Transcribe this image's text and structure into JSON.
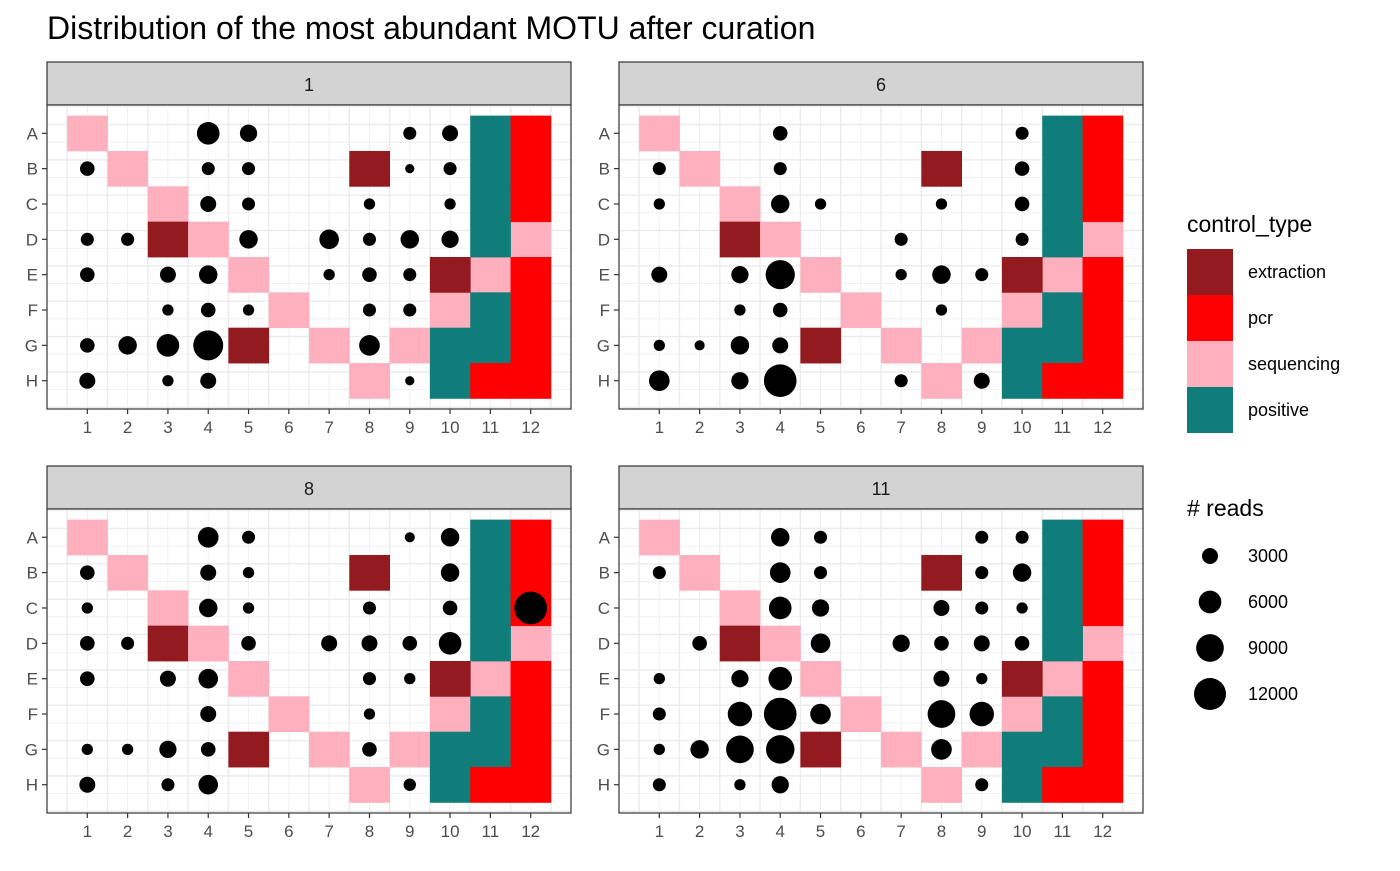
{
  "colors": {
    "extraction": "#931a1f",
    "pcr": "#ff0000",
    "sequencing": "#ffb0bf",
    "positive": "#117d7a",
    "point": "#000000",
    "strip": "#d3d3d3",
    "grid": "#ebebeb"
  },
  "chart_data": {
    "type": "scatter",
    "title": "Distribution of the most abundant MOTU after curation",
    "xlabel": "",
    "ylabel": "",
    "x_ticks": [
      "1",
      "2",
      "3",
      "4",
      "5",
      "6",
      "7",
      "8",
      "9",
      "10",
      "11",
      "12"
    ],
    "y_ticks": [
      "A",
      "B",
      "C",
      "D",
      "E",
      "F",
      "G",
      "H"
    ],
    "xlim": [
      0.5,
      12.5
    ],
    "grid": true,
    "legend_position": "right",
    "legend_fill": {
      "title": "control_type",
      "entries": [
        {
          "key": "extraction",
          "label": "extraction"
        },
        {
          "key": "pcr",
          "label": "pcr"
        },
        {
          "key": "sequencing",
          "label": "sequencing"
        },
        {
          "key": "positive",
          "label": "positive"
        }
      ]
    },
    "legend_size": {
      "title": "# reads",
      "breaks": [
        3000,
        6000,
        9000,
        12000
      ],
      "labels": [
        "3000",
        "6000",
        "9000",
        "12000"
      ]
    },
    "controls": [
      {
        "well": "A1",
        "type": "sequencing"
      },
      {
        "well": "B2",
        "type": "sequencing"
      },
      {
        "well": "C3",
        "type": "sequencing"
      },
      {
        "well": "D3",
        "type": "extraction"
      },
      {
        "well": "D4",
        "type": "sequencing"
      },
      {
        "well": "E5",
        "type": "sequencing"
      },
      {
        "well": "F6",
        "type": "sequencing"
      },
      {
        "well": "G7",
        "type": "sequencing"
      },
      {
        "well": "H8",
        "type": "sequencing"
      },
      {
        "well": "G9",
        "type": "sequencing"
      },
      {
        "well": "F10",
        "type": "sequencing"
      },
      {
        "well": "E11",
        "type": "sequencing"
      },
      {
        "well": "D12",
        "type": "sequencing"
      },
      {
        "well": "B8",
        "type": "extraction"
      },
      {
        "well": "E10",
        "type": "extraction"
      },
      {
        "well": "A11",
        "type": "positive"
      },
      {
        "well": "B11",
        "type": "positive"
      },
      {
        "well": "C11",
        "type": "positive"
      },
      {
        "well": "D11",
        "type": "positive"
      },
      {
        "well": "F11",
        "type": "positive"
      },
      {
        "well": "G11",
        "type": "positive"
      },
      {
        "well": "G10",
        "type": "positive"
      },
      {
        "well": "H10",
        "type": "positive"
      },
      {
        "well": "A12",
        "type": "pcr"
      },
      {
        "well": "B12",
        "type": "pcr"
      },
      {
        "well": "C12",
        "type": "pcr"
      },
      {
        "well": "E12",
        "type": "pcr"
      },
      {
        "well": "F12",
        "type": "pcr"
      },
      {
        "well": "G12",
        "type": "pcr"
      },
      {
        "well": "H12",
        "type": "pcr"
      },
      {
        "well": "H11",
        "type": "pcr"
      }
    ],
    "panels": [
      {
        "label": "1",
        "variable_control": {
          "well": "G5",
          "type": "extraction"
        },
        "points": [
          {
            "well": "A4",
            "reads": 6000
          },
          {
            "well": "A5",
            "reads": 3500
          },
          {
            "well": "A9",
            "reads": 2000
          },
          {
            "well": "A10",
            "reads": 3000
          },
          {
            "well": "B1",
            "reads": 2500
          },
          {
            "well": "B4",
            "reads": 2000
          },
          {
            "well": "B5",
            "reads": 2000
          },
          {
            "well": "B9",
            "reads": 1000
          },
          {
            "well": "B10",
            "reads": 2000
          },
          {
            "well": "C4",
            "reads": 3000
          },
          {
            "well": "C5",
            "reads": 2000
          },
          {
            "well": "C8",
            "reads": 1500
          },
          {
            "well": "C10",
            "reads": 1500
          },
          {
            "well": "D1",
            "reads": 2000
          },
          {
            "well": "D2",
            "reads": 2000
          },
          {
            "well": "D5",
            "reads": 4000
          },
          {
            "well": "D7",
            "reads": 4500
          },
          {
            "well": "D8",
            "reads": 2000
          },
          {
            "well": "D9",
            "reads": 4000
          },
          {
            "well": "D10",
            "reads": 3500
          },
          {
            "well": "E1",
            "reads": 2500
          },
          {
            "well": "E3",
            "reads": 3000
          },
          {
            "well": "E4",
            "reads": 4000
          },
          {
            "well": "E7",
            "reads": 1500
          },
          {
            "well": "E8",
            "reads": 2500
          },
          {
            "well": "E9",
            "reads": 2000
          },
          {
            "well": "F3",
            "reads": 1500
          },
          {
            "well": "F4",
            "reads": 2500
          },
          {
            "well": "F5",
            "reads": 1500
          },
          {
            "well": "F8",
            "reads": 2000
          },
          {
            "well": "F9",
            "reads": 2000
          },
          {
            "well": "G1",
            "reads": 2500
          },
          {
            "well": "G2",
            "reads": 4000
          },
          {
            "well": "G3",
            "reads": 6000
          },
          {
            "well": "G4",
            "reads": 10500
          },
          {
            "well": "G8",
            "reads": 5000
          },
          {
            "well": "H1",
            "reads": 3000
          },
          {
            "well": "H3",
            "reads": 1500
          },
          {
            "well": "H4",
            "reads": 3000
          },
          {
            "well": "H9",
            "reads": 1000
          }
        ]
      },
      {
        "label": "6",
        "variable_control": {
          "well": "G5",
          "type": "extraction"
        },
        "points": [
          {
            "well": "A4",
            "reads": 2500
          },
          {
            "well": "A10",
            "reads": 2000
          },
          {
            "well": "B1",
            "reads": 2000
          },
          {
            "well": "B4",
            "reads": 2000
          },
          {
            "well": "B10",
            "reads": 2500
          },
          {
            "well": "C1",
            "reads": 1500
          },
          {
            "well": "C4",
            "reads": 4000
          },
          {
            "well": "C5",
            "reads": 1500
          },
          {
            "well": "C8",
            "reads": 1500
          },
          {
            "well": "C10",
            "reads": 2500
          },
          {
            "well": "D7",
            "reads": 2000
          },
          {
            "well": "D10",
            "reads": 2000
          },
          {
            "well": "E1",
            "reads": 3000
          },
          {
            "well": "E3",
            "reads": 3500
          },
          {
            "well": "E4",
            "reads": 10000
          },
          {
            "well": "E7",
            "reads": 1500
          },
          {
            "well": "E8",
            "reads": 4000
          },
          {
            "well": "E9",
            "reads": 2000
          },
          {
            "well": "F3",
            "reads": 1500
          },
          {
            "well": "F4",
            "reads": 2500
          },
          {
            "well": "F8",
            "reads": 1500
          },
          {
            "well": "G1",
            "reads": 1500
          },
          {
            "well": "G2",
            "reads": 1200
          },
          {
            "well": "G3",
            "reads": 4000
          },
          {
            "well": "G4",
            "reads": 3000
          },
          {
            "well": "H1",
            "reads": 5000
          },
          {
            "well": "H3",
            "reads": 3500
          },
          {
            "well": "H4",
            "reads": 12500
          },
          {
            "well": "H7",
            "reads": 2000
          },
          {
            "well": "H9",
            "reads": 3000
          }
        ]
      },
      {
        "label": "8",
        "variable_control": {
          "well": "G5",
          "type": "extraction"
        },
        "points": [
          {
            "well": "A4",
            "reads": 5000
          },
          {
            "well": "A5",
            "reads": 2000
          },
          {
            "well": "A9",
            "reads": 1200
          },
          {
            "well": "A10",
            "reads": 4000
          },
          {
            "well": "B1",
            "reads": 2500
          },
          {
            "well": "B4",
            "reads": 3000
          },
          {
            "well": "B5",
            "reads": 1500
          },
          {
            "well": "B10",
            "reads": 4000
          },
          {
            "well": "C1",
            "reads": 1500
          },
          {
            "well": "C4",
            "reads": 4000
          },
          {
            "well": "C5",
            "reads": 1500
          },
          {
            "well": "C8",
            "reads": 2000
          },
          {
            "well": "C10",
            "reads": 2500
          },
          {
            "well": "C12",
            "reads": 12500
          },
          {
            "well": "D1",
            "reads": 2500
          },
          {
            "well": "D2",
            "reads": 2000
          },
          {
            "well": "D5",
            "reads": 2500
          },
          {
            "well": "D7",
            "reads": 3000
          },
          {
            "well": "D8",
            "reads": 3000
          },
          {
            "well": "D9",
            "reads": 2500
          },
          {
            "well": "D10",
            "reads": 6000
          },
          {
            "well": "E1",
            "reads": 2500
          },
          {
            "well": "E3",
            "reads": 3000
          },
          {
            "well": "E4",
            "reads": 4500
          },
          {
            "well": "E8",
            "reads": 2000
          },
          {
            "well": "E9",
            "reads": 1500
          },
          {
            "well": "F4",
            "reads": 3000
          },
          {
            "well": "F8",
            "reads": 1500
          },
          {
            "well": "G1",
            "reads": 1500
          },
          {
            "well": "G2",
            "reads": 1500
          },
          {
            "well": "G3",
            "reads": 3500
          },
          {
            "well": "G4",
            "reads": 2500
          },
          {
            "well": "G8",
            "reads": 2500
          },
          {
            "well": "H1",
            "reads": 3000
          },
          {
            "well": "H3",
            "reads": 2000
          },
          {
            "well": "H4",
            "reads": 4500
          },
          {
            "well": "H9",
            "reads": 1800
          }
        ]
      },
      {
        "label": "11",
        "variable_control": {
          "well": "G5",
          "type": "extraction"
        },
        "points": [
          {
            "well": "A4",
            "reads": 4000
          },
          {
            "well": "A5",
            "reads": 2000
          },
          {
            "well": "A9",
            "reads": 2000
          },
          {
            "well": "A10",
            "reads": 2000
          },
          {
            "well": "B1",
            "reads": 2000
          },
          {
            "well": "B4",
            "reads": 5000
          },
          {
            "well": "B5",
            "reads": 2000
          },
          {
            "well": "B9",
            "reads": 2000
          },
          {
            "well": "B10",
            "reads": 4000
          },
          {
            "well": "C4",
            "reads": 6000
          },
          {
            "well": "C5",
            "reads": 3500
          },
          {
            "well": "C8",
            "reads": 3000
          },
          {
            "well": "C9",
            "reads": 2000
          },
          {
            "well": "C10",
            "reads": 1500
          },
          {
            "well": "D2",
            "reads": 2500
          },
          {
            "well": "D5",
            "reads": 4500
          },
          {
            "well": "D7",
            "reads": 3500
          },
          {
            "well": "D8",
            "reads": 2500
          },
          {
            "well": "D9",
            "reads": 3000
          },
          {
            "well": "D10",
            "reads": 2500
          },
          {
            "well": "E1",
            "reads": 1500
          },
          {
            "well": "E3",
            "reads": 3500
          },
          {
            "well": "E4",
            "reads": 6500
          },
          {
            "well": "E8",
            "reads": 3000
          },
          {
            "well": "E9",
            "reads": 1500
          },
          {
            "well": "F1",
            "reads": 2000
          },
          {
            "well": "F3",
            "reads": 7000
          },
          {
            "well": "F4",
            "reads": 12500
          },
          {
            "well": "F5",
            "reads": 5000
          },
          {
            "well": "F8",
            "reads": 9000
          },
          {
            "well": "F9",
            "reads": 7000
          },
          {
            "well": "G1",
            "reads": 1500
          },
          {
            "well": "G2",
            "reads": 4000
          },
          {
            "well": "G3",
            "reads": 9000
          },
          {
            "well": "G4",
            "reads": 9500
          },
          {
            "well": "G8",
            "reads": 5000
          },
          {
            "well": "H1",
            "reads": 2000
          },
          {
            "well": "H3",
            "reads": 1500
          },
          {
            "well": "H4",
            "reads": 3500
          },
          {
            "well": "H9",
            "reads": 2000
          }
        ]
      }
    ]
  }
}
